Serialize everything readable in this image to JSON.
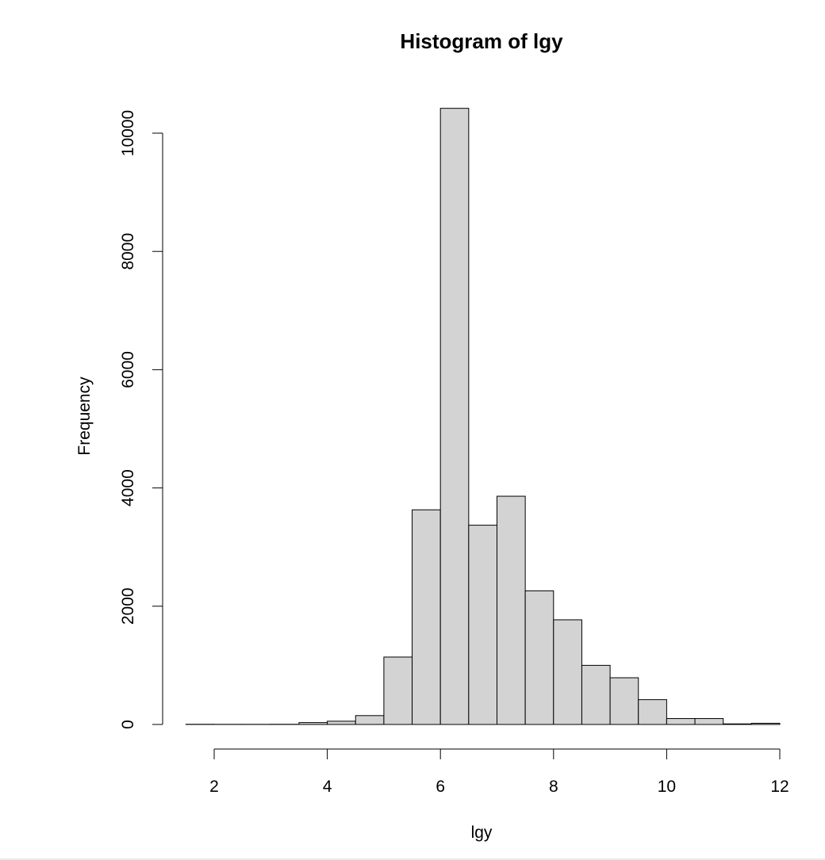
{
  "chart_data": {
    "type": "bar",
    "title": "Histogram of lgy",
    "xlabel": "lgy",
    "ylabel": "Frequency",
    "bin_edges": [
      1.5,
      2.0,
      2.5,
      3.0,
      3.5,
      4.0,
      4.5,
      5.0,
      5.5,
      6.0,
      6.5,
      7.0,
      7.5,
      8.0,
      8.5,
      9.0,
      9.5,
      10.0,
      10.5,
      11.0,
      11.5,
      12.0
    ],
    "values": [
      3,
      2,
      2,
      3,
      32,
      55,
      150,
      1140,
      3630,
      10420,
      3370,
      3860,
      2260,
      1770,
      1000,
      790,
      420,
      100,
      100,
      10,
      20
    ],
    "xlim": [
      2,
      12
    ],
    "ylim": [
      0,
      10000
    ],
    "x_ticks": [
      2,
      4,
      6,
      8,
      10,
      12
    ],
    "y_ticks": [
      0,
      2000,
      4000,
      6000,
      8000,
      10000
    ],
    "bar_color": "#d3d3d3",
    "edge_color": "#000000",
    "grid": false,
    "legend": "none"
  }
}
